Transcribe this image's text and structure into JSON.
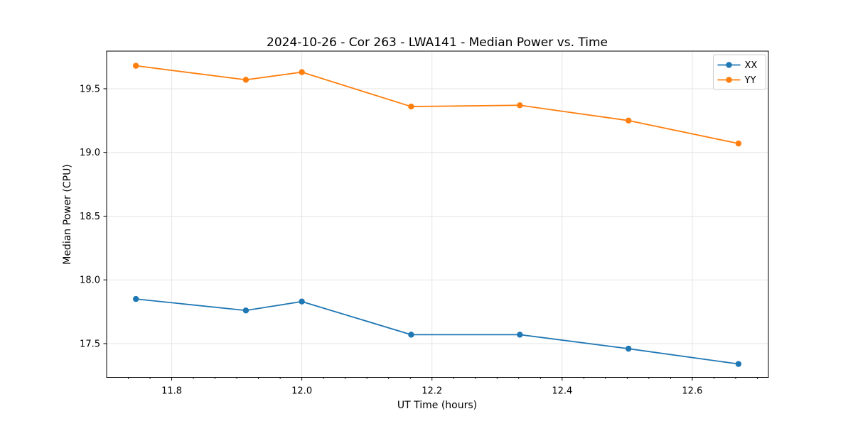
{
  "figure": {
    "title": "2024-10-26 - Cor 263 - LWA141 - Median Power vs. Time",
    "xlabel": "UT Time (hours)",
    "ylabel": "Median Power (CPU)"
  },
  "chart_data": {
    "type": "line",
    "title": "2024-10-26 - Cor 263 - LWA141 - Median Power vs. Time",
    "xlabel": "UT Time (hours)",
    "ylabel": "Median Power (CPU)",
    "x": [
      11.745,
      11.914,
      12.0,
      12.168,
      12.335,
      12.502,
      12.671
    ],
    "series": [
      {
        "name": "XX",
        "color": "#1f77b4",
        "values": [
          17.85,
          17.76,
          17.83,
          17.57,
          17.57,
          17.46,
          17.34
        ]
      },
      {
        "name": "YY",
        "color": "#ff7f0e",
        "values": [
          19.68,
          19.57,
          19.63,
          19.36,
          19.37,
          19.25,
          19.07
        ]
      }
    ],
    "xlim": [
      11.7,
      12.717
    ],
    "ylim": [
      17.235,
      19.795
    ],
    "x_ticks": [
      11.8,
      12.0,
      12.2,
      12.4,
      12.6
    ],
    "y_ticks": [
      17.5,
      18.0,
      18.5,
      19.0,
      19.5
    ],
    "x_minor_divisions": 6,
    "grid": true,
    "legend_position": "top-right",
    "colors": {
      "grid": "#e5e5e5",
      "spine": "#000000",
      "legend_edge": "#cccccc",
      "background": "#ffffff"
    }
  }
}
